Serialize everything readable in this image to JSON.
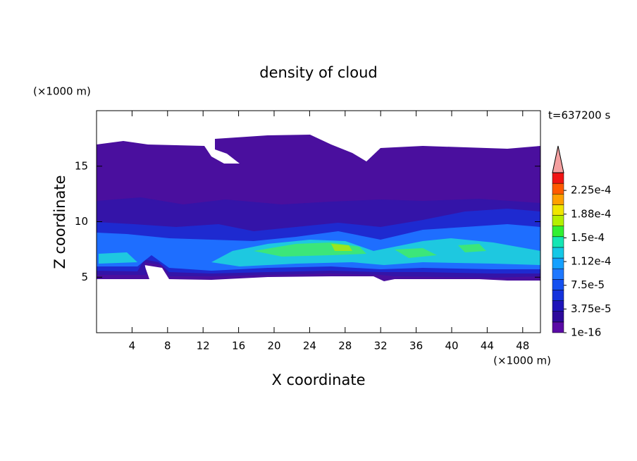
{
  "chart_data": {
    "type": "contour",
    "title": "density of cloud",
    "y_unit": "(×1000 m)",
    "x_unit": "(×1000 m)",
    "time_label": "t=637200 s",
    "xlabel": "X coordinate",
    "ylabel": "Z coordinate",
    "xlim": [
      0,
      50
    ],
    "ylim": [
      0,
      20
    ],
    "xticks": [
      4,
      8,
      12,
      16,
      20,
      24,
      28,
      32,
      36,
      40,
      44,
      48
    ],
    "yticks": [
      5,
      10,
      15
    ],
    "colorbar": {
      "lim": [
        0,
        0.000253
      ],
      "colors": [
        "#5a0aa5",
        "#2d0a9b",
        "#1e14b9",
        "#1432dc",
        "#1450f0",
        "#1e78ff",
        "#14a0ff",
        "#14c8e6",
        "#14e6b4",
        "#32f032",
        "#b4f000",
        "#f0e600",
        "#ffa000",
        "#ff5a00",
        "#f01414"
      ],
      "extend_color": "#f4a0a0",
      "ticks": [
        {
          "value": 1e-16,
          "label": "1e-16"
        },
        {
          "value": 3.75e-05,
          "label": "3.75e-5"
        },
        {
          "value": 7.5e-05,
          "label": "7.5e-5"
        },
        {
          "value": 0.0001125,
          "label": "1.12e-4"
        },
        {
          "value": 0.00015,
          "label": "1.5e-4"
        },
        {
          "value": 0.0001875,
          "label": "1.88e-4"
        },
        {
          "value": 0.000225,
          "label": "2.25e-4"
        }
      ]
    }
  }
}
